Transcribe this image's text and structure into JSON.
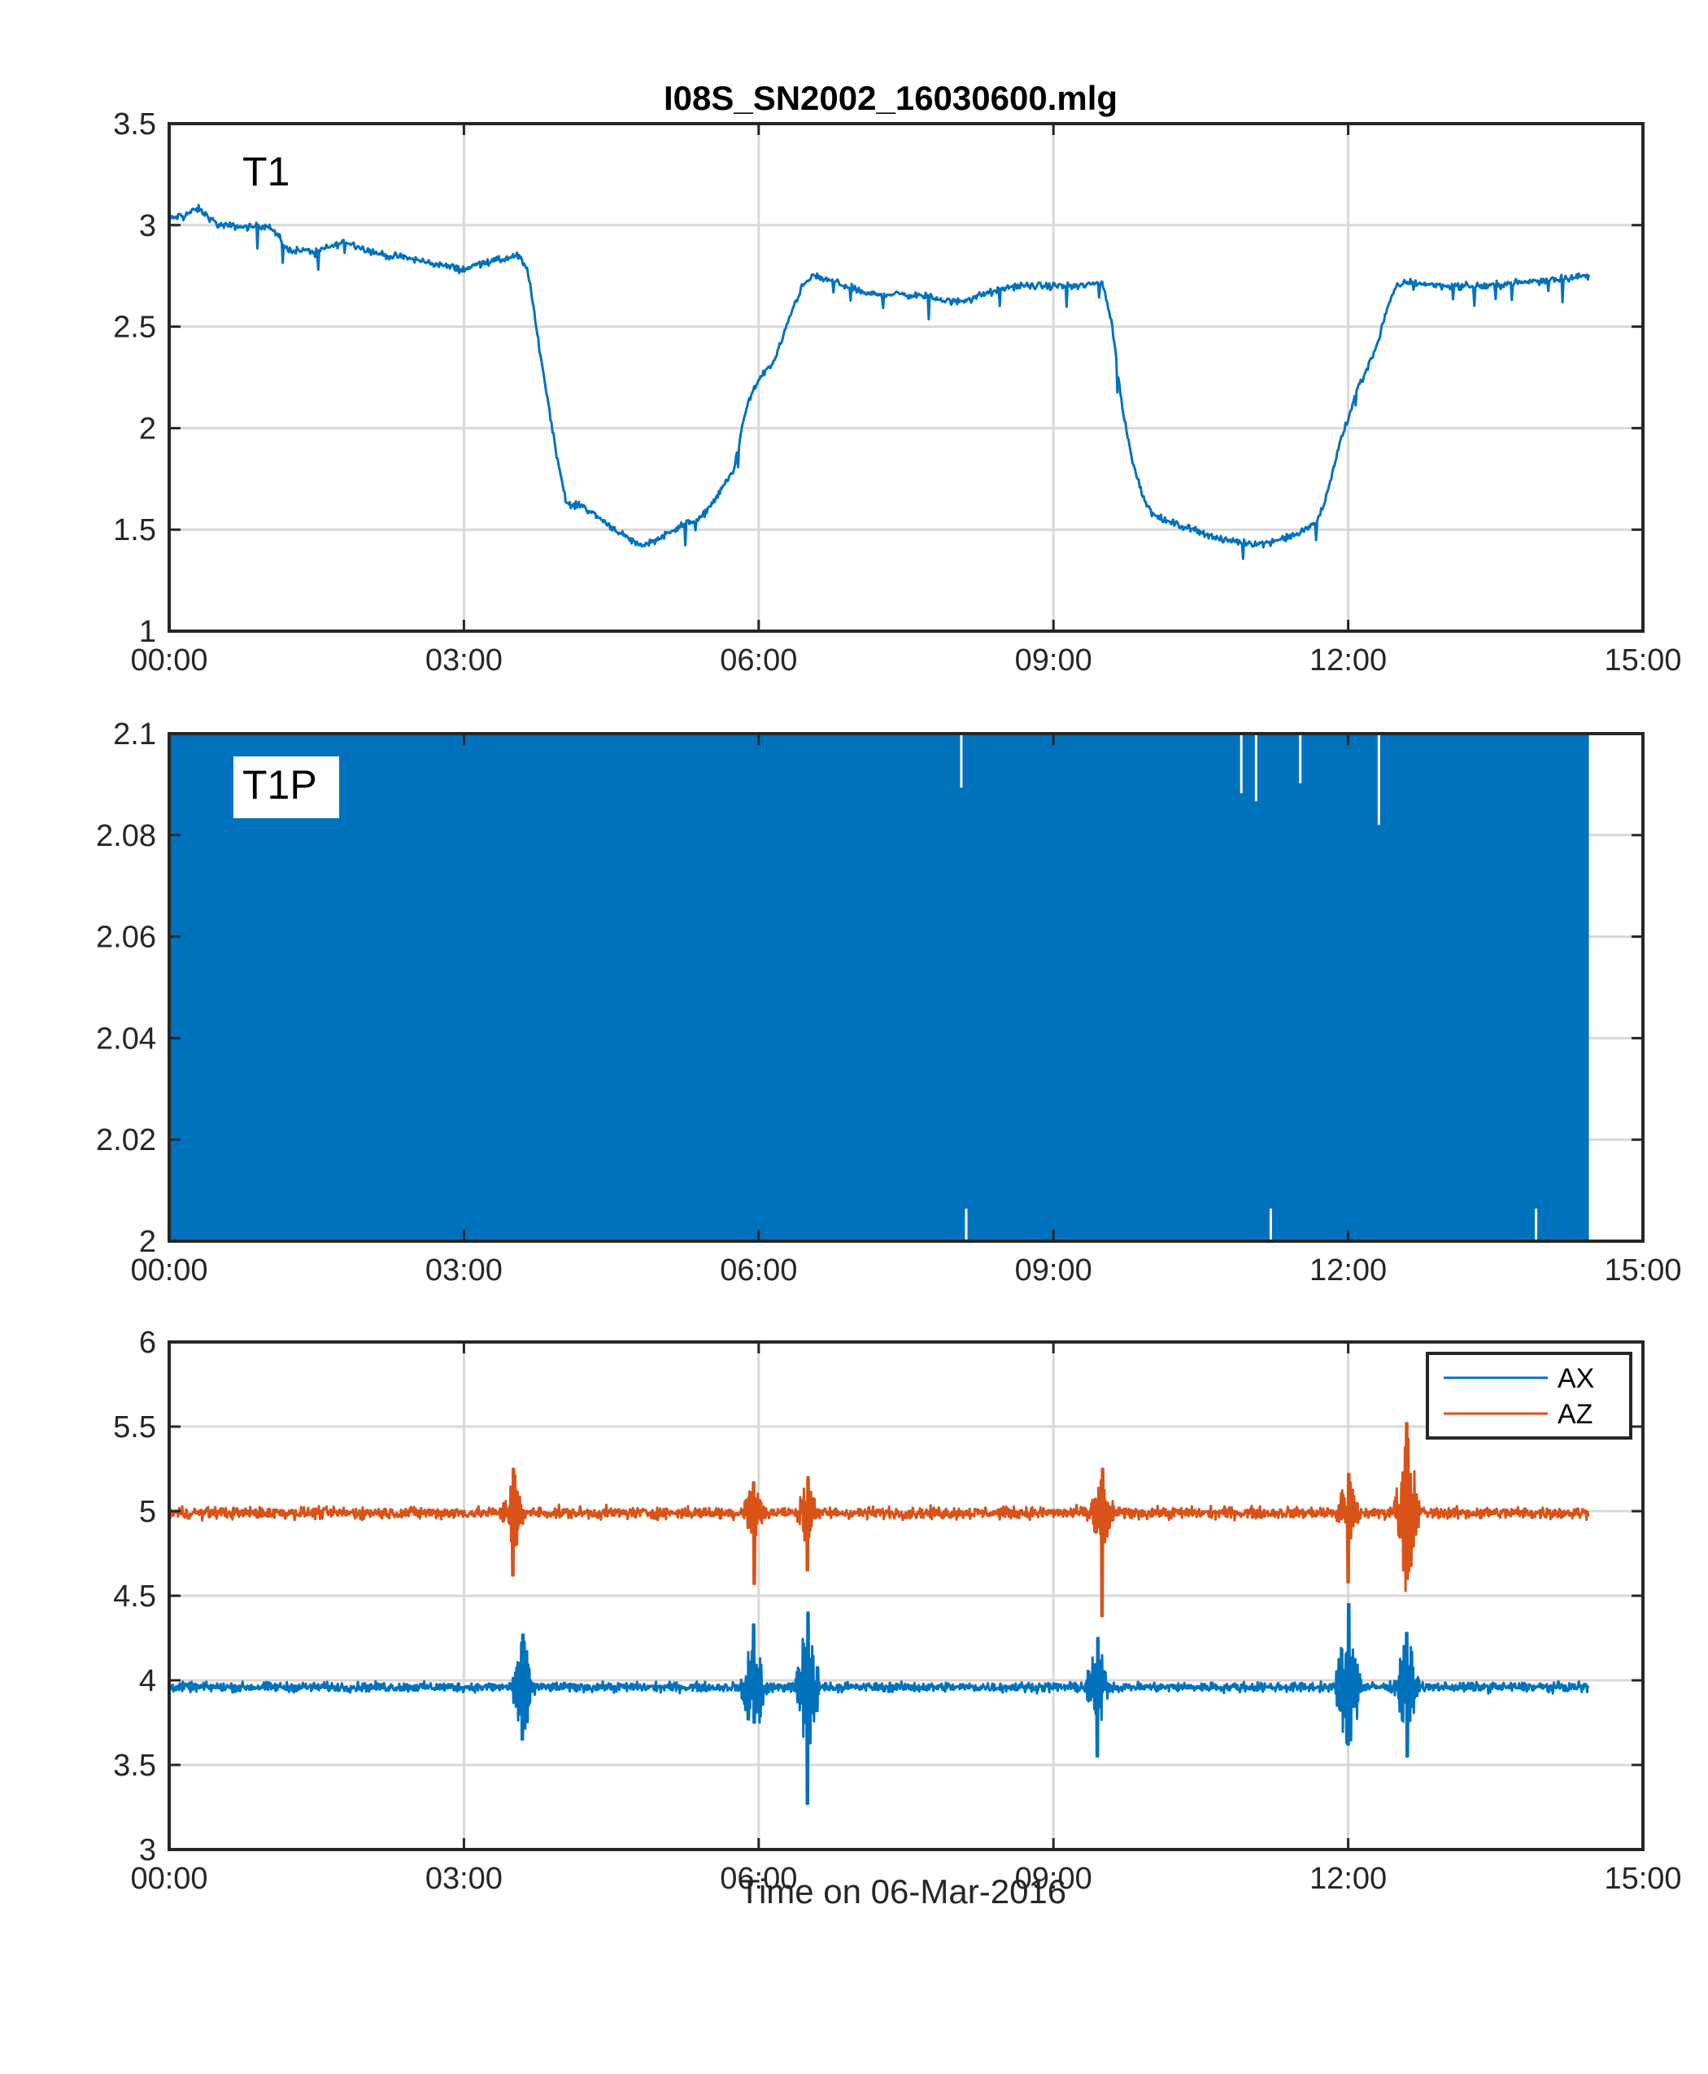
{
  "chart_data": [
    {
      "type": "line",
      "title": "I08S_SN2002_16030600.mlg",
      "panel_label": "T1",
      "xlabel": "",
      "ylabel": "",
      "xlim": [
        0,
        15
      ],
      "ylim": [
        1,
        3.5
      ],
      "x_ticks": [
        "00:00",
        "03:00",
        "06:00",
        "09:00",
        "12:00",
        "15:00"
      ],
      "y_ticks": [
        "1",
        "1.5",
        "2",
        "2.5",
        "3",
        "3.5"
      ],
      "grid": true,
      "series": [
        {
          "color": "#0072BD",
          "x": [
            0,
            0.15,
            0.3,
            0.5,
            0.8,
            1.0,
            1.1,
            1.2,
            1.5,
            1.8,
            2.0,
            2.2,
            2.4,
            2.6,
            2.8,
            3.0,
            3.2,
            3.4,
            3.55,
            3.65,
            3.75,
            3.85,
            3.95,
            4.05,
            4.2,
            4.4,
            4.6,
            4.8,
            5.0,
            5.2,
            5.4,
            5.6,
            5.75,
            5.85,
            5.95,
            6.05,
            6.15,
            6.25,
            6.35,
            6.45,
            6.55,
            6.7,
            6.9,
            7.1,
            7.4,
            7.7,
            8.0,
            8.3,
            8.6,
            8.9,
            9.1,
            9.3,
            9.5,
            9.6,
            9.7,
            9.8,
            9.9,
            10.0,
            10.15,
            10.3,
            10.5,
            10.7,
            10.9,
            11.1,
            11.3,
            11.5,
            11.7,
            11.8,
            11.9,
            12.0,
            12.1,
            12.2,
            12.3,
            12.4,
            12.5,
            12.6,
            12.8,
            13.0,
            13.2,
            13.4,
            13.6,
            13.8,
            14.0,
            14.2,
            14.45
          ],
          "y": [
            3.03,
            3.05,
            3.08,
            3.0,
            2.99,
            3.0,
            2.95,
            2.88,
            2.87,
            2.92,
            2.88,
            2.85,
            2.84,
            2.82,
            2.8,
            2.78,
            2.82,
            2.83,
            2.85,
            2.78,
            2.45,
            2.15,
            1.85,
            1.62,
            1.62,
            1.55,
            1.48,
            1.42,
            1.46,
            1.52,
            1.55,
            1.68,
            1.8,
            2.05,
            2.2,
            2.27,
            2.32,
            2.45,
            2.6,
            2.7,
            2.75,
            2.73,
            2.7,
            2.66,
            2.66,
            2.65,
            2.62,
            2.66,
            2.7,
            2.7,
            2.7,
            2.7,
            2.72,
            2.5,
            2.1,
            1.85,
            1.68,
            1.58,
            1.54,
            1.52,
            1.49,
            1.45,
            1.44,
            1.43,
            1.45,
            1.48,
            1.55,
            1.7,
            1.9,
            2.05,
            2.2,
            2.3,
            2.42,
            2.6,
            2.7,
            2.72,
            2.71,
            2.7,
            2.7,
            2.7,
            2.71,
            2.72,
            2.73,
            2.74,
            2.75
          ],
          "noise": 0.025
        }
      ]
    },
    {
      "type": "line",
      "panel_label": "T1P",
      "xlabel": "",
      "ylabel": "",
      "xlim": [
        0,
        15
      ],
      "ylim": [
        2,
        2.1
      ],
      "x_ticks": [
        "00:00",
        "03:00",
        "06:00",
        "09:00",
        "12:00",
        "15:00"
      ],
      "y_ticks": [
        "2",
        "2.02",
        "2.04",
        "2.06",
        "2.08",
        "2.1"
      ],
      "grid": true,
      "series": [
        {
          "color": "#0072BD",
          "x": [
            0,
            14.45
          ],
          "y_min": 2.0,
          "y_max": 2.1,
          "style": "dense oscillation filling the axis range"
        }
      ]
    },
    {
      "type": "line",
      "xlabel": "Time on 06-Mar-2016",
      "ylabel": "",
      "xlim": [
        0,
        15
      ],
      "ylim": [
        3,
        6
      ],
      "x_ticks": [
        "00:00",
        "03:00",
        "06:00",
        "09:00",
        "12:00",
        "15:00"
      ],
      "y_ticks": [
        "3",
        "3.5",
        "4",
        "4.5",
        "5",
        "5.5",
        "6"
      ],
      "grid": true,
      "legend": "top-right",
      "series": [
        {
          "name": "AX",
          "color": "#0072BD",
          "baseline": 3.96,
          "noise": 0.04,
          "bursts": [
            {
              "x": 3.6,
              "min": 3.65,
              "max": 4.27
            },
            {
              "x": 5.95,
              "min": 3.75,
              "max": 4.33
            },
            {
              "x": 6.5,
              "min": 3.27,
              "max": 4.4
            },
            {
              "x": 9.45,
              "min": 3.55,
              "max": 4.25
            },
            {
              "x": 12.0,
              "min": 3.62,
              "max": 4.45
            },
            {
              "x": 12.6,
              "min": 3.55,
              "max": 4.28
            }
          ]
        },
        {
          "name": "AZ",
          "color": "#D95319",
          "baseline": 4.99,
          "noise": 0.05,
          "bursts": [
            {
              "x": 3.5,
              "min": 4.62,
              "max": 5.25
            },
            {
              "x": 5.95,
              "min": 4.57,
              "max": 5.17
            },
            {
              "x": 6.5,
              "min": 4.65,
              "max": 5.2
            },
            {
              "x": 9.5,
              "min": 4.38,
              "max": 5.25
            },
            {
              "x": 12.0,
              "min": 4.58,
              "max": 5.22
            },
            {
              "x": 12.6,
              "min": 4.6,
              "max": 5.52
            }
          ]
        }
      ]
    }
  ]
}
